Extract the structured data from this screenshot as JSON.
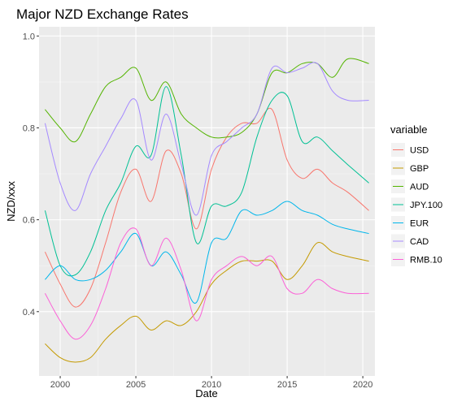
{
  "chart_data": {
    "type": "line",
    "title": "Major NZD Exchange Rates",
    "xlabel": "Date",
    "ylabel": "NZD/xxx",
    "xlim": [
      1998.6,
      2020.8
    ],
    "ylim": [
      0.26,
      1.02
    ],
    "x_ticks": [
      2000,
      2005,
      2010,
      2015,
      2020
    ],
    "y_ticks": [
      0.4,
      0.6,
      0.8,
      1.0
    ],
    "y_tick_labels": [
      "0.4",
      "0.6",
      "0.8",
      "1.0"
    ],
    "grid": true,
    "legend": {
      "title": "variable",
      "position": "right"
    },
    "series": [
      {
        "name": "USD",
        "color": "#F8766D",
        "x": [
          1999,
          2000,
          2001,
          2002,
          2003,
          2004,
          2005,
          2006,
          2007,
          2008,
          2009,
          2010,
          2011,
          2012,
          2013,
          2014,
          2015,
          2016,
          2017,
          2018,
          2019,
          2020.4
        ],
        "values": [
          0.53,
          0.46,
          0.41,
          0.45,
          0.55,
          0.66,
          0.71,
          0.64,
          0.75,
          0.7,
          0.58,
          0.71,
          0.78,
          0.81,
          0.81,
          0.84,
          0.73,
          0.69,
          0.71,
          0.68,
          0.66,
          0.62
        ]
      },
      {
        "name": "GBP",
        "color": "#C49A00",
        "x": [
          1999,
          2000,
          2001,
          2002,
          2003,
          2004,
          2005,
          2006,
          2007,
          2008,
          2009,
          2010,
          2011,
          2012,
          2013,
          2014,
          2015,
          2016,
          2017,
          2018,
          2019,
          2020.4
        ],
        "values": [
          0.33,
          0.3,
          0.29,
          0.3,
          0.34,
          0.37,
          0.39,
          0.36,
          0.38,
          0.37,
          0.4,
          0.46,
          0.49,
          0.51,
          0.51,
          0.51,
          0.47,
          0.5,
          0.55,
          0.53,
          0.52,
          0.51
        ]
      },
      {
        "name": "AUD",
        "color": "#53B400",
        "x": [
          1999,
          2000,
          2001,
          2002,
          2003,
          2004,
          2005,
          2006,
          2007,
          2008,
          2009,
          2010,
          2011,
          2012,
          2013,
          2014,
          2015,
          2016,
          2017,
          2018,
          2019,
          2020.4
        ],
        "values": [
          0.84,
          0.8,
          0.77,
          0.83,
          0.89,
          0.91,
          0.93,
          0.86,
          0.9,
          0.83,
          0.8,
          0.78,
          0.78,
          0.79,
          0.83,
          0.92,
          0.92,
          0.94,
          0.94,
          0.91,
          0.95,
          0.94
        ]
      },
      {
        "name": "JPY.100",
        "color": "#00C094",
        "x": [
          1999,
          2000,
          2001,
          2002,
          2003,
          2004,
          2005,
          2006,
          2007,
          2008,
          2009,
          2010,
          2011,
          2012,
          2013,
          2014,
          2015,
          2016,
          2017,
          2018,
          2019,
          2020.4
        ],
        "values": [
          0.62,
          0.5,
          0.48,
          0.53,
          0.62,
          0.68,
          0.76,
          0.74,
          0.89,
          0.74,
          0.55,
          0.63,
          0.63,
          0.66,
          0.78,
          0.86,
          0.87,
          0.77,
          0.78,
          0.75,
          0.72,
          0.68
        ]
      },
      {
        "name": "EUR",
        "color": "#00B6EB",
        "x": [
          1999,
          2000,
          2001,
          2002,
          2003,
          2004,
          2005,
          2006,
          2007,
          2008,
          2009,
          2010,
          2011,
          2012,
          2013,
          2014,
          2015,
          2016,
          2017,
          2018,
          2019,
          2020.4
        ],
        "values": [
          0.47,
          0.5,
          0.47,
          0.47,
          0.49,
          0.53,
          0.57,
          0.5,
          0.53,
          0.48,
          0.42,
          0.55,
          0.56,
          0.62,
          0.61,
          0.62,
          0.64,
          0.62,
          0.61,
          0.59,
          0.58,
          0.57
        ]
      },
      {
        "name": "CAD",
        "color": "#A58AFF",
        "x": [
          1999,
          2000,
          2001,
          2002,
          2003,
          2004,
          2005,
          2006,
          2007,
          2008,
          2009,
          2010,
          2011,
          2012,
          2013,
          2014,
          2015,
          2016,
          2017,
          2018,
          2019,
          2020.4
        ],
        "values": [
          0.81,
          0.68,
          0.62,
          0.7,
          0.76,
          0.82,
          0.86,
          0.73,
          0.83,
          0.72,
          0.61,
          0.74,
          0.77,
          0.8,
          0.83,
          0.93,
          0.92,
          0.93,
          0.94,
          0.88,
          0.86,
          0.86
        ]
      },
      {
        "name": "RMB.10",
        "color": "#FB61D7",
        "x": [
          1999,
          2000,
          2001,
          2002,
          2003,
          2004,
          2005,
          2006,
          2007,
          2008,
          2009,
          2010,
          2011,
          2012,
          2013,
          2014,
          2015,
          2016,
          2017,
          2018,
          2019,
          2020.4
        ],
        "values": [
          0.44,
          0.38,
          0.34,
          0.37,
          0.45,
          0.55,
          0.58,
          0.5,
          0.56,
          0.49,
          0.38,
          0.47,
          0.5,
          0.52,
          0.5,
          0.52,
          0.45,
          0.44,
          0.47,
          0.45,
          0.44,
          0.44
        ]
      }
    ]
  }
}
